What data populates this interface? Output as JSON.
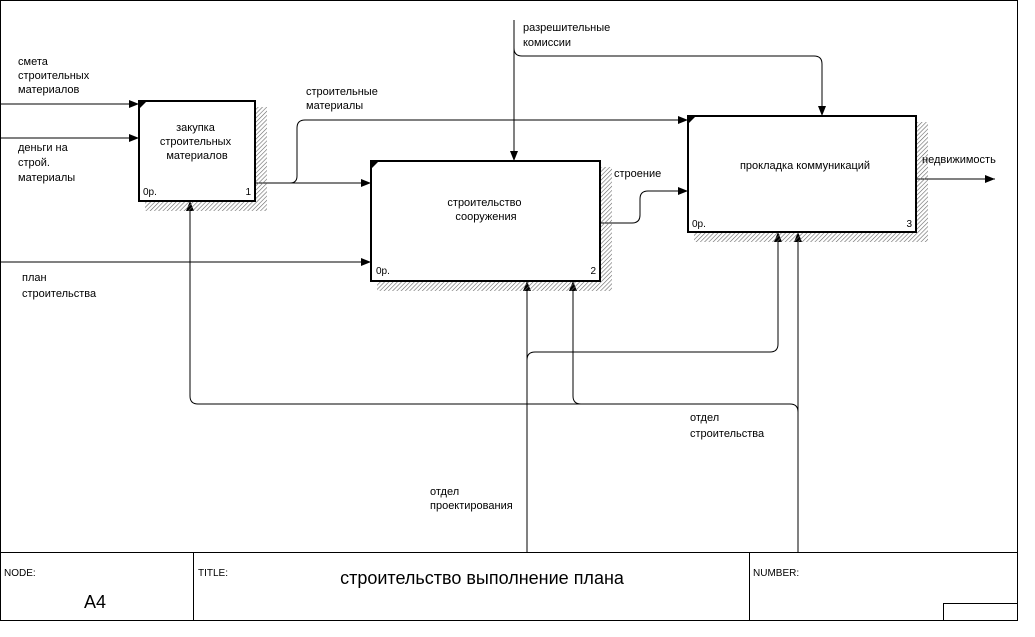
{
  "boxes": [
    {
      "label": [
        "закупка",
        "строительных",
        "материалов"
      ],
      "cost": "0р.",
      "number": "1"
    },
    {
      "label": [
        "строительство",
        "сооружения"
      ],
      "cost": "0р.",
      "number": "2"
    },
    {
      "label": [
        "прокладка коммуникаций"
      ],
      "cost": "0р.",
      "number": "3"
    }
  ],
  "arrows": [
    {
      "label": [
        "смета",
        "строительных",
        "материалов"
      ]
    },
    {
      "label": [
        "деньги на",
        "строй.",
        "материалы"
      ]
    },
    {
      "label": [
        "план",
        "строительства"
      ]
    },
    {
      "label": [
        "строительные",
        "материалы"
      ]
    },
    {
      "label": [
        "разрешительные",
        "комиссии"
      ]
    },
    {
      "label": [
        "строение"
      ]
    },
    {
      "label": [
        "недвижимость"
      ]
    },
    {
      "label": [
        "отдел",
        "проектирования"
      ]
    },
    {
      "label": [
        "отдел",
        "строительства"
      ]
    }
  ],
  "footer": {
    "node_label": "NODE:",
    "node": "A4",
    "title_label": "TITLE:",
    "title": "строительство выполнение плана",
    "number_label": "NUMBER:"
  }
}
